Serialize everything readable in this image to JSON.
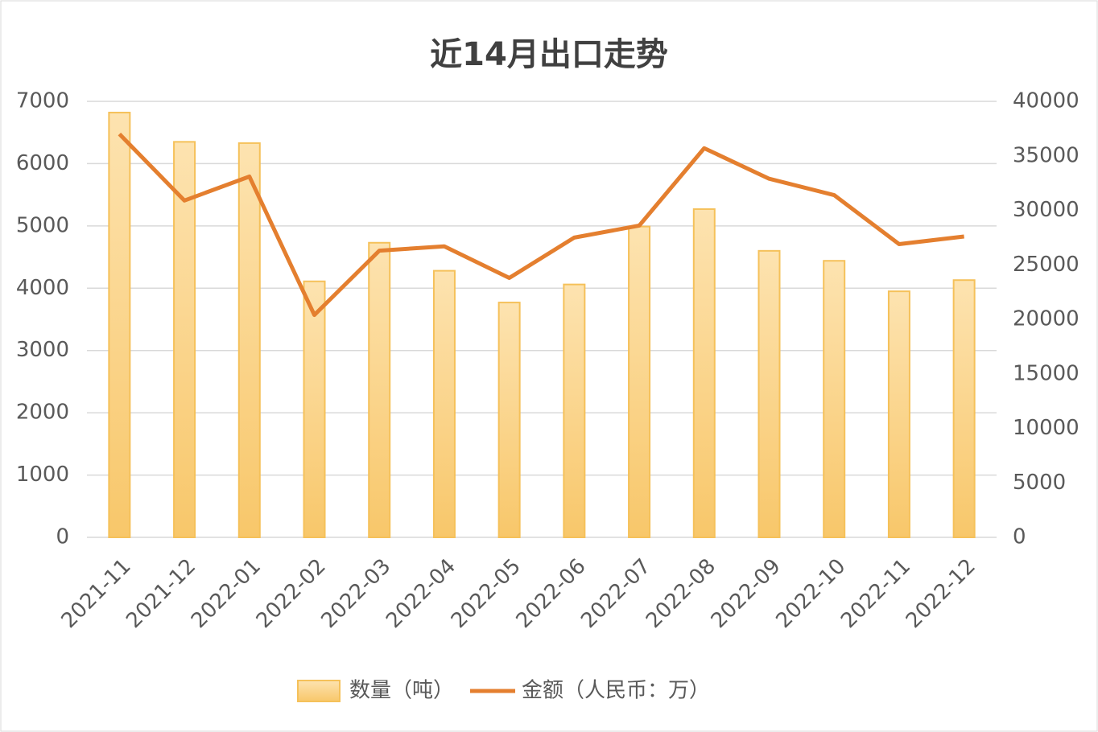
{
  "chart_data": {
    "type": "bar-line",
    "title": "近14月出口走势",
    "categories": [
      "2021-11",
      "2021-12",
      "2022-01",
      "2022-02",
      "2022-03",
      "2022-04",
      "2022-05",
      "2022-06",
      "2022-07",
      "2022-08",
      "2022-09",
      "2022-10",
      "2022-11",
      "2022-12"
    ],
    "series": [
      {
        "name": "数量（吨）",
        "type": "bar",
        "color": "#f5c15a",
        "values": [
          6820,
          6350,
          6330,
          4110,
          4730,
          4280,
          3770,
          4060,
          4990,
          5270,
          4600,
          4440,
          3950,
          4130
        ]
      },
      {
        "name": "金额（人民币：万）",
        "type": "line",
        "axis": "y2",
        "color": "#e47f2f",
        "values": [
          37000,
          30900,
          33100,
          20400,
          26300,
          26700,
          23800,
          27500,
          28600,
          35700,
          32900,
          31400,
          26900,
          27600
        ]
      }
    ],
    "ylim": [
      0,
      7000
    ],
    "yticks": [
      0,
      1000,
      2000,
      3000,
      4000,
      5000,
      6000,
      7000
    ],
    "y2lim": [
      0,
      40000
    ],
    "y2ticks": [
      0,
      5000,
      10000,
      15000,
      20000,
      25000,
      30000,
      35000,
      40000
    ],
    "grid": true,
    "legend": "bottom"
  }
}
